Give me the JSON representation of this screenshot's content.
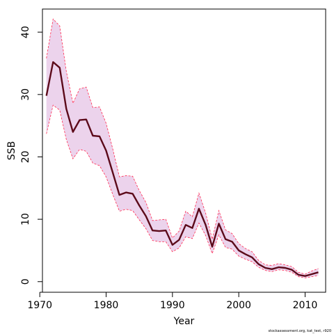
{
  "chart_data": {
    "type": "line",
    "xlabel": "Year",
    "ylabel": "SSB",
    "footnote": "stockassessment.org, kat_test, r920",
    "xlim": [
      1970.4,
      2013.1
    ],
    "ylim": [
      -1.7,
      43.7
    ],
    "xticks": [
      1970,
      1980,
      1990,
      2000,
      2010
    ],
    "yticks": [
      0,
      10,
      20,
      30,
      40
    ],
    "colors": {
      "estimate_line": "#5c0a1a",
      "ci_band_fill": "#ecd3ec",
      "ci_band_edge": "#ff2a50",
      "axis": "#000000"
    },
    "x": [
      1971,
      1972,
      1973,
      1974,
      1975,
      1976,
      1977,
      1978,
      1979,
      1980,
      1981,
      1982,
      1983,
      1984,
      1985,
      1986,
      1987,
      1988,
      1989,
      1990,
      1991,
      1992,
      1993,
      1994,
      1995,
      1996,
      1997,
      1998,
      1999,
      2000,
      2001,
      2002,
      2003,
      2004,
      2005,
      2006,
      2007,
      2008,
      2009,
      2010,
      2011,
      2012
    ],
    "series": [
      {
        "role": "estimate",
        "values": [
          29.8,
          35.2,
          34.3,
          27.7,
          24.0,
          25.9,
          26.0,
          23.4,
          23.3,
          21.0,
          17.5,
          13.9,
          14.3,
          14.1,
          12.2,
          10.5,
          8.2,
          8.1,
          8.2,
          5.9,
          6.7,
          9.1,
          8.6,
          11.7,
          9.1,
          5.6,
          9.3,
          6.8,
          6.4,
          5.0,
          4.4,
          3.9,
          2.8,
          2.2,
          2.0,
          2.3,
          2.2,
          1.9,
          1.1,
          0.9,
          1.2,
          1.5
        ]
      },
      {
        "role": "upper",
        "values": [
          35.8,
          42.1,
          41.0,
          33.7,
          28.6,
          30.9,
          31.2,
          27.9,
          28.0,
          25.4,
          21.3,
          16.8,
          17.0,
          16.9,
          14.6,
          12.7,
          9.8,
          9.9,
          10.0,
          7.0,
          8.1,
          11.3,
          10.4,
          14.2,
          11.0,
          6.8,
          11.4,
          8.3,
          7.7,
          6.1,
          5.3,
          4.8,
          3.4,
          2.7,
          2.6,
          2.9,
          2.7,
          2.4,
          1.5,
          1.2,
          1.7,
          2.1
        ]
      },
      {
        "role": "lower",
        "values": [
          23.7,
          28.3,
          27.5,
          22.8,
          19.7,
          21.2,
          20.9,
          19.0,
          18.6,
          16.8,
          14.0,
          11.3,
          11.6,
          11.4,
          9.9,
          8.5,
          6.6,
          6.4,
          6.4,
          4.8,
          5.4,
          7.2,
          6.9,
          9.4,
          7.4,
          4.5,
          7.5,
          5.5,
          5.2,
          4.1,
          3.6,
          3.2,
          2.3,
          1.8,
          1.6,
          1.9,
          1.8,
          1.5,
          0.8,
          0.6,
          0.8,
          1.0
        ]
      }
    ]
  }
}
